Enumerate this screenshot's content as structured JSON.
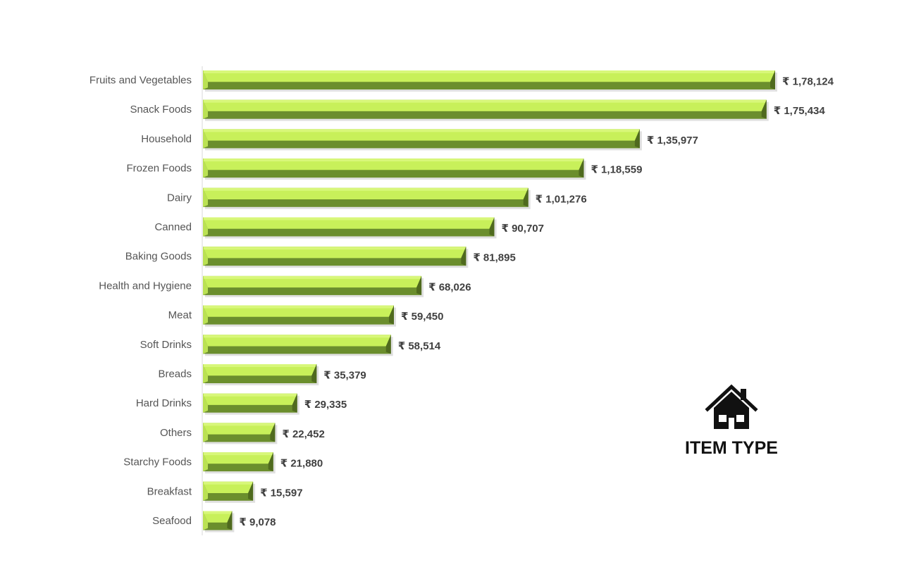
{
  "chart_data": {
    "type": "bar",
    "orientation": "horizontal",
    "categories": [
      "Fruits and Vegetables",
      "Snack Foods",
      "Household",
      "Frozen Foods",
      "Dairy",
      "Canned",
      "Baking Goods",
      "Health and Hygiene",
      "Meat",
      "Soft Drinks",
      "Breads",
      "Hard Drinks",
      "Others",
      "Starchy Foods",
      "Breakfast",
      "Seafood"
    ],
    "values": [
      178124,
      175434,
      135977,
      118559,
      101276,
      90707,
      81895,
      68026,
      59450,
      58514,
      35379,
      29335,
      22452,
      21880,
      15597,
      9078
    ],
    "data_labels": [
      "₹ 1,78,124",
      "₹ 1,75,434",
      "₹ 1,35,977",
      "₹ 1,18,559",
      "₹ 1,01,276",
      "₹ 90,707",
      "₹ 81,895",
      "₹ 68,026",
      "₹ 59,450",
      "₹ 58,514",
      "₹ 35,379",
      "₹ 29,335",
      "₹ 22,452",
      "₹ 21,880",
      "₹ 15,597",
      "₹ 9,078"
    ],
    "title": "ITEM TYPE",
    "xlabel": "",
    "ylabel": "",
    "xlim": [
      0,
      178124
    ],
    "grid": false,
    "colors": {
      "bar_top": "#c8f05a",
      "bar_light": "#d8f77a",
      "bar_shade": "#6b8e2d",
      "bar_edge": "#4f6a1e"
    }
  },
  "legend": {
    "icon": "house-icon",
    "title": "ITEM TYPE"
  }
}
